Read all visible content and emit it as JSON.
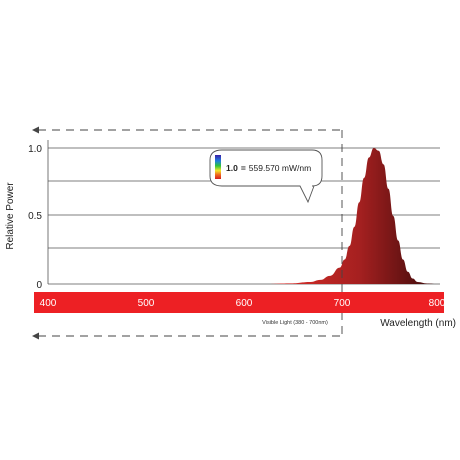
{
  "chart_data": {
    "type": "area",
    "title": "",
    "xlabel": "Wavelength (nm)",
    "ylabel": "Relative Power",
    "xlim": [
      400,
      800
    ],
    "ylim": [
      0,
      1.0
    ],
    "x_ticks": [
      "400",
      "500",
      "600",
      "700",
      "800"
    ],
    "y_ticks": [
      "0",
      "0.5",
      "1.0"
    ],
    "grid": "horizontal",
    "series": [
      {
        "color": "#e8302a",
        "x": [
          400,
          620,
          650,
          670,
          680,
          690,
          700,
          705,
          710,
          715,
          720,
          725,
          730,
          735,
          740,
          745,
          750,
          755,
          760,
          765,
          770,
          775,
          780,
          790,
          800
        ],
        "y": [
          0,
          0,
          0.005,
          0.015,
          0.03,
          0.06,
          0.12,
          0.18,
          0.28,
          0.42,
          0.6,
          0.78,
          0.93,
          1.0,
          0.98,
          0.88,
          0.7,
          0.5,
          0.32,
          0.18,
          0.09,
          0.04,
          0.015,
          0.004,
          0
        ]
      }
    ],
    "callout": {
      "value_label": "1.0",
      "equals": "=",
      "reading": "559.570 mW/nm"
    },
    "visible_light_note": "Visible Light (380 - 700nm)",
    "visible_light_limit": 700,
    "colors": {
      "curve": "#e8302a",
      "band": "#ed2024",
      "grid": "#555555"
    }
  }
}
